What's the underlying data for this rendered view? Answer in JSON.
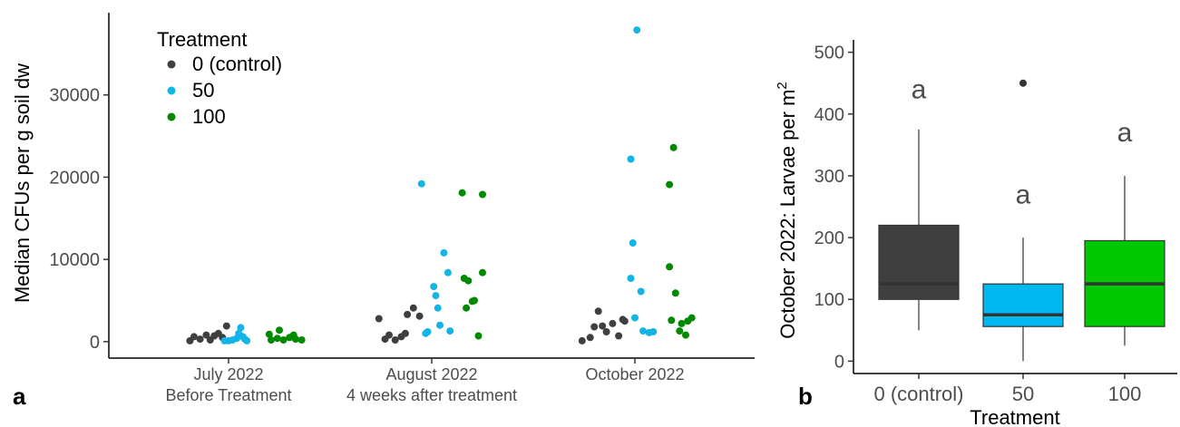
{
  "chart_data": [
    {
      "type": "scatter",
      "panel_label": "a",
      "title": "",
      "ylabel": "Median CFUs per g soil dw",
      "xlabel": "",
      "ylim": [
        -2000,
        40000
      ],
      "yticks": [
        0,
        10000,
        20000,
        30000
      ],
      "categories": [
        {
          "line1": "July 2022",
          "line2": "Before Treatment"
        },
        {
          "line1": "August 2022",
          "line2": "4 weeks after treatment"
        },
        {
          "line1": "October 2022",
          "line2": ""
        }
      ],
      "legend": {
        "title": "Treatment",
        "position": "top-left",
        "entries": [
          "0 (control)",
          "50",
          "100"
        ]
      },
      "colors": {
        "0 (control)": "#3f3f3f",
        "50": "#12b5e6",
        "100": "#008a00"
      },
      "series": [
        {
          "name": "0 (control)",
          "points": [
            {
              "cat": 0,
              "jitter": -0.19,
              "y": 100
            },
            {
              "cat": 0,
              "jitter": -0.17,
              "y": 600
            },
            {
              "cat": 0,
              "jitter": -0.14,
              "y": 300
            },
            {
              "cat": 0,
              "jitter": -0.11,
              "y": 800
            },
            {
              "cat": 0,
              "jitter": -0.09,
              "y": 200
            },
            {
              "cat": 0,
              "jitter": -0.07,
              "y": 700
            },
            {
              "cat": 0,
              "jitter": -0.05,
              "y": 1000
            },
            {
              "cat": 0,
              "jitter": -0.03,
              "y": 500
            },
            {
              "cat": 0,
              "jitter": -0.01,
              "y": 1900
            },
            {
              "cat": 1,
              "jitter": -0.26,
              "y": 2800
            },
            {
              "cat": 1,
              "jitter": -0.23,
              "y": 300
            },
            {
              "cat": 1,
              "jitter": -0.21,
              "y": 800
            },
            {
              "cat": 1,
              "jitter": -0.18,
              "y": 200
            },
            {
              "cat": 1,
              "jitter": -0.15,
              "y": 600
            },
            {
              "cat": 1,
              "jitter": -0.13,
              "y": 1000
            },
            {
              "cat": 1,
              "jitter": -0.12,
              "y": 3300
            },
            {
              "cat": 1,
              "jitter": -0.09,
              "y": 4100
            },
            {
              "cat": 1,
              "jitter": -0.06,
              "y": 3100
            },
            {
              "cat": 2,
              "jitter": -0.26,
              "y": 100
            },
            {
              "cat": 2,
              "jitter": -0.22,
              "y": 500
            },
            {
              "cat": 2,
              "jitter": -0.2,
              "y": 1800
            },
            {
              "cat": 2,
              "jitter": -0.18,
              "y": 3700
            },
            {
              "cat": 2,
              "jitter": -0.16,
              "y": 1900
            },
            {
              "cat": 2,
              "jitter": -0.14,
              "y": 1200
            },
            {
              "cat": 2,
              "jitter": -0.11,
              "y": 2200
            },
            {
              "cat": 2,
              "jitter": -0.08,
              "y": 700
            },
            {
              "cat": 2,
              "jitter": -0.06,
              "y": 2700
            },
            {
              "cat": 2,
              "jitter": -0.05,
              "y": 2500
            }
          ]
        },
        {
          "name": "50",
          "points": [
            {
              "cat": 0,
              "jitter": -0.02,
              "y": 100
            },
            {
              "cat": 0,
              "jitter": 0.0,
              "y": 100
            },
            {
              "cat": 0,
              "jitter": 0.02,
              "y": 200
            },
            {
              "cat": 0,
              "jitter": 0.04,
              "y": 400
            },
            {
              "cat": 0,
              "jitter": 0.05,
              "y": 1000
            },
            {
              "cat": 0,
              "jitter": 0.06,
              "y": 1700
            },
            {
              "cat": 0,
              "jitter": 0.07,
              "y": 600
            },
            {
              "cat": 0,
              "jitter": 0.08,
              "y": 300
            },
            {
              "cat": 0,
              "jitter": 0.09,
              "y": 100
            },
            {
              "cat": 1,
              "jitter": -0.05,
              "y": 19200
            },
            {
              "cat": 1,
              "jitter": -0.03,
              "y": 1000
            },
            {
              "cat": 1,
              "jitter": -0.02,
              "y": 1200
            },
            {
              "cat": 1,
              "jitter": 0.01,
              "y": 6700
            },
            {
              "cat": 1,
              "jitter": 0.02,
              "y": 5600
            },
            {
              "cat": 1,
              "jitter": 0.03,
              "y": 4100
            },
            {
              "cat": 1,
              "jitter": 0.04,
              "y": 2000
            },
            {
              "cat": 1,
              "jitter": 0.06,
              "y": 10800
            },
            {
              "cat": 1,
              "jitter": 0.08,
              "y": 8400
            },
            {
              "cat": 1,
              "jitter": 0.09,
              "y": 1300
            },
            {
              "cat": 2,
              "jitter": -0.02,
              "y": 22200
            },
            {
              "cat": 2,
              "jitter": -0.01,
              "y": 12000
            },
            {
              "cat": 2,
              "jitter": -0.02,
              "y": 7700
            },
            {
              "cat": 2,
              "jitter": 0.0,
              "y": 2900
            },
            {
              "cat": 2,
              "jitter": 0.01,
              "y": 37900
            },
            {
              "cat": 2,
              "jitter": 0.03,
              "y": 6100
            },
            {
              "cat": 2,
              "jitter": 0.04,
              "y": 1300
            },
            {
              "cat": 2,
              "jitter": 0.07,
              "y": 1100
            },
            {
              "cat": 2,
              "jitter": 0.09,
              "y": 1200
            }
          ]
        },
        {
          "name": "100",
          "points": [
            {
              "cat": 0,
              "jitter": 0.2,
              "y": 900
            },
            {
              "cat": 0,
              "jitter": 0.21,
              "y": 200
            },
            {
              "cat": 0,
              "jitter": 0.24,
              "y": 400
            },
            {
              "cat": 0,
              "jitter": 0.25,
              "y": 1400
            },
            {
              "cat": 0,
              "jitter": 0.27,
              "y": 200
            },
            {
              "cat": 0,
              "jitter": 0.3,
              "y": 500
            },
            {
              "cat": 0,
              "jitter": 0.32,
              "y": 800
            },
            {
              "cat": 0,
              "jitter": 0.33,
              "y": 300
            },
            {
              "cat": 0,
              "jitter": 0.36,
              "y": 200
            },
            {
              "cat": 1,
              "jitter": 0.15,
              "y": 18100
            },
            {
              "cat": 1,
              "jitter": 0.16,
              "y": 7700
            },
            {
              "cat": 1,
              "jitter": 0.17,
              "y": 4100
            },
            {
              "cat": 1,
              "jitter": 0.18,
              "y": 7400
            },
            {
              "cat": 1,
              "jitter": 0.2,
              "y": 4900
            },
            {
              "cat": 1,
              "jitter": 0.21,
              "y": 5000
            },
            {
              "cat": 1,
              "jitter": 0.23,
              "y": 700
            },
            {
              "cat": 1,
              "jitter": 0.25,
              "y": 17900
            },
            {
              "cat": 1,
              "jitter": 0.25,
              "y": 8400
            },
            {
              "cat": 2,
              "jitter": 0.19,
              "y": 23600
            },
            {
              "cat": 2,
              "jitter": 0.17,
              "y": 19100
            },
            {
              "cat": 2,
              "jitter": 0.17,
              "y": 9100
            },
            {
              "cat": 2,
              "jitter": 0.18,
              "y": 2600
            },
            {
              "cat": 2,
              "jitter": 0.2,
              "y": 5900
            },
            {
              "cat": 2,
              "jitter": 0.22,
              "y": 1300
            },
            {
              "cat": 2,
              "jitter": 0.23,
              "y": 2200
            },
            {
              "cat": 2,
              "jitter": 0.25,
              "y": 800
            },
            {
              "cat": 2,
              "jitter": 0.26,
              "y": 2500
            },
            {
              "cat": 2,
              "jitter": 0.28,
              "y": 2900
            }
          ]
        }
      ]
    },
    {
      "type": "box",
      "panel_label": "b",
      "title": "",
      "ylabel": "October 2022: Larvae per m",
      "ylabel_superscript": "2",
      "xlabel": "Treatment",
      "ylim": [
        -20,
        520
      ],
      "yticks": [
        0,
        100,
        200,
        300,
        400,
        500
      ],
      "categories": [
        "0 (control)",
        "50",
        "100"
      ],
      "colors": [
        "#3f3f3f",
        "#00b8f0",
        "#00c800"
      ],
      "boxes": [
        {
          "name": "0 (control)",
          "whisker_low": 50,
          "q1": 100,
          "median": 125,
          "q3": 220,
          "whisker_high": 375,
          "outliers": [],
          "letter": "a",
          "letter_y": 440
        },
        {
          "name": "50",
          "whisker_low": 0,
          "q1": 56,
          "median": 75,
          "q3": 125,
          "whisker_high": 200,
          "outliers": [
            450
          ],
          "letter": "a",
          "letter_y": 270
        },
        {
          "name": "100",
          "whisker_low": 25,
          "q1": 56,
          "median": 125,
          "q3": 195,
          "whisker_high": 300,
          "outliers": [],
          "letter": "a",
          "letter_y": 370
        }
      ]
    }
  ]
}
